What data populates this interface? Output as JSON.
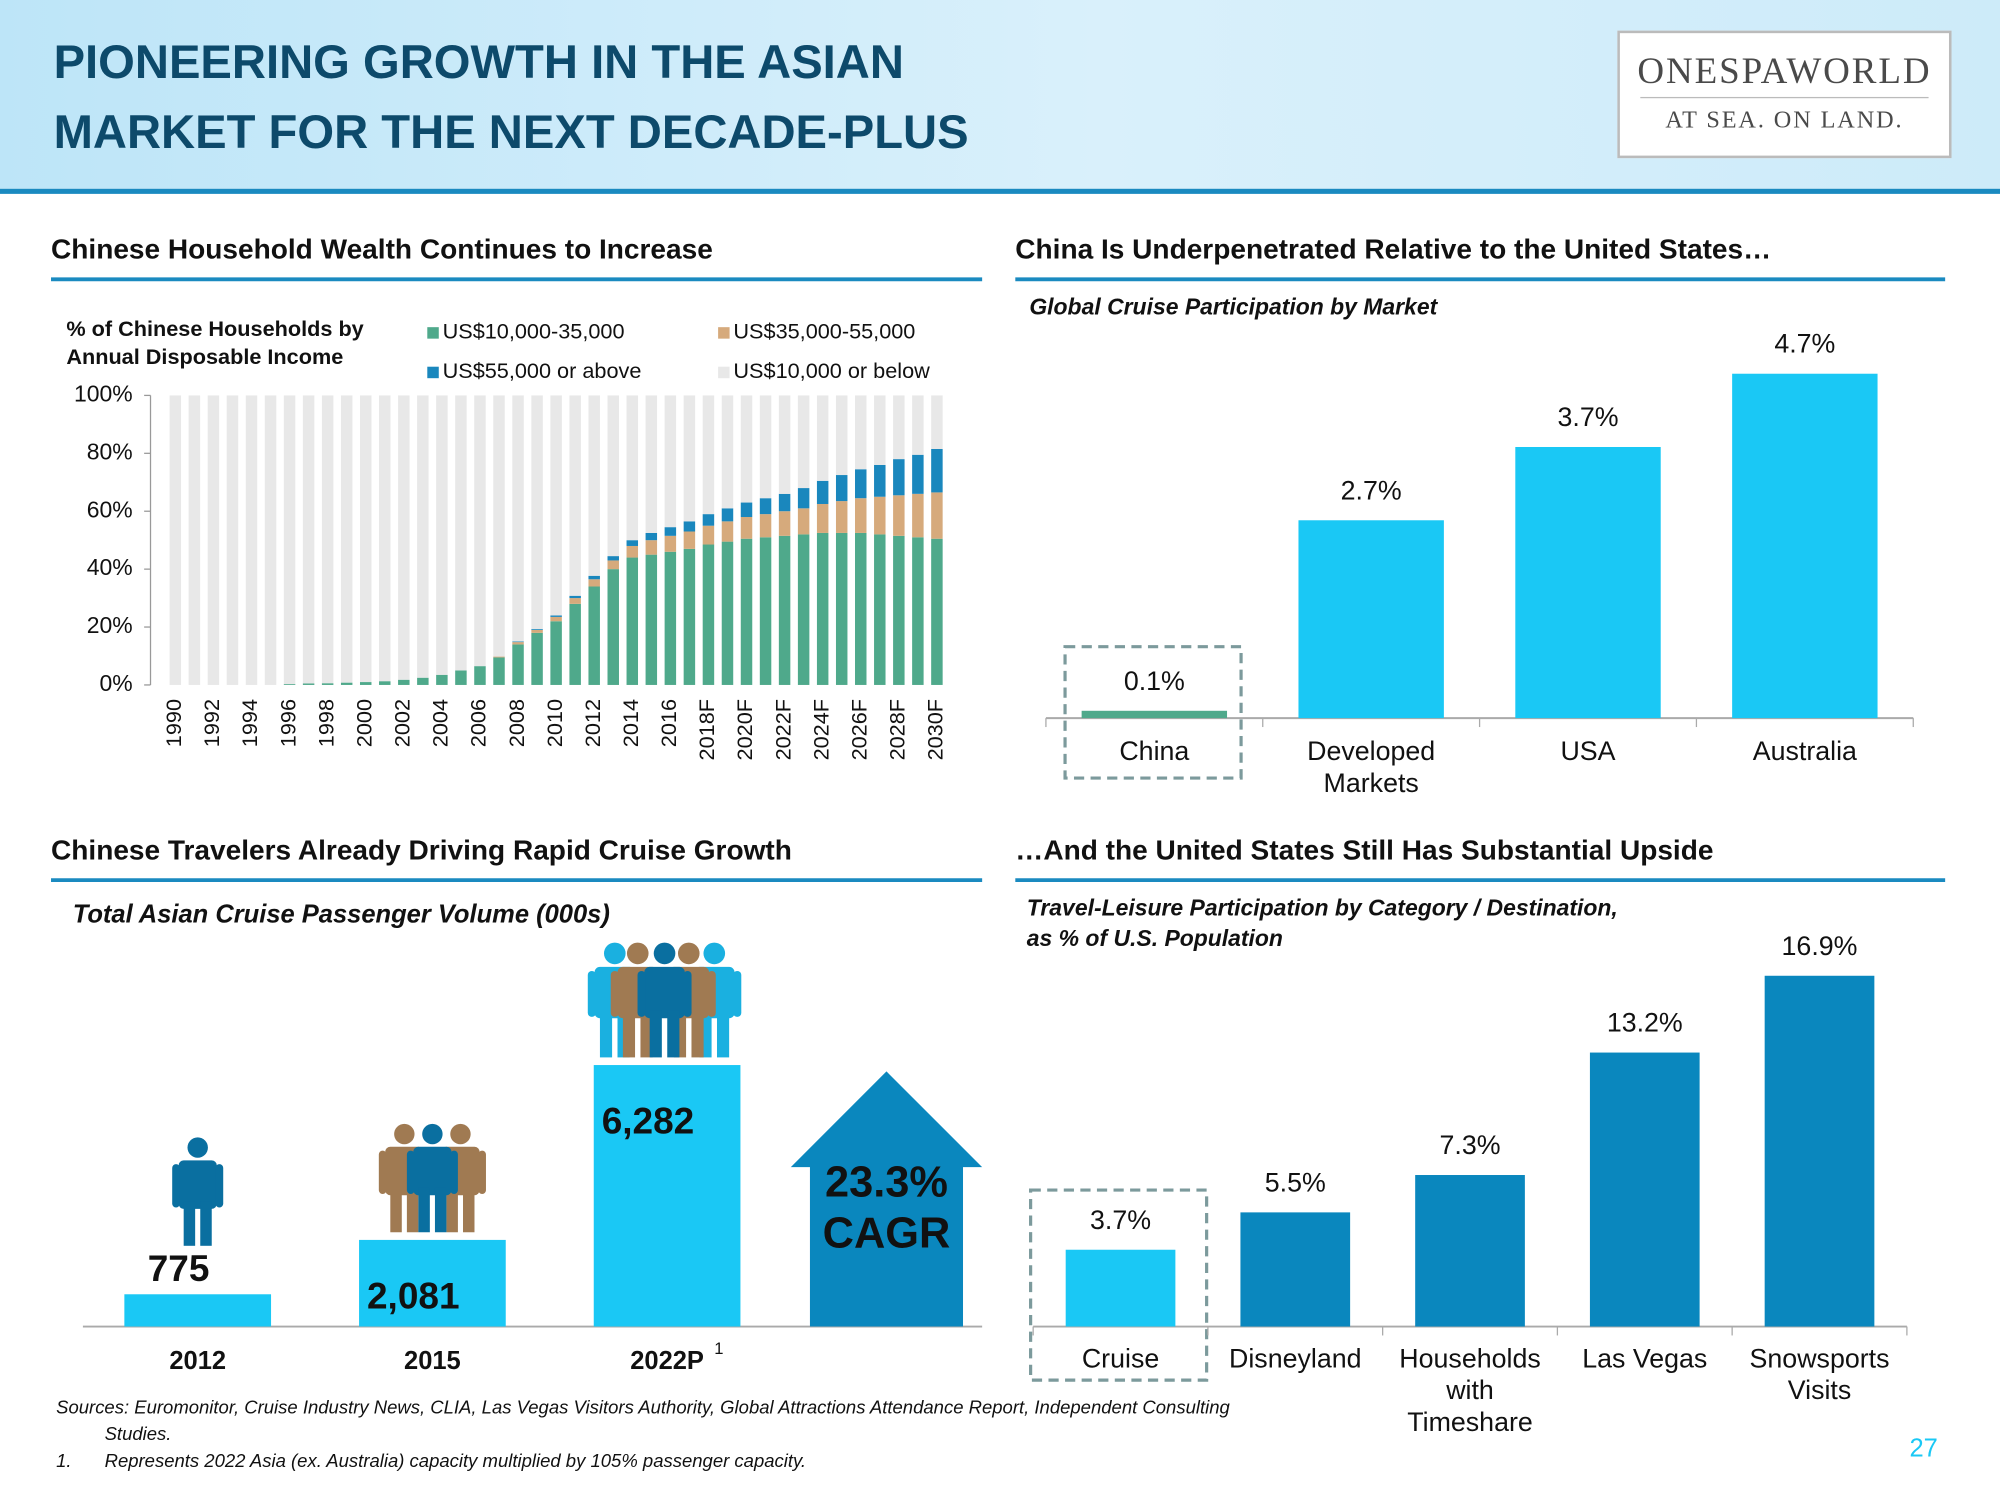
{
  "header": {
    "title": [
      "PIONEERING GROWTH IN THE ASIAN",
      "MARKET FOR THE NEXT DECADE-PLUS"
    ],
    "logo": {
      "name": "ONESPAWORLD",
      "tagline": "AT SEA. ON LAND."
    }
  },
  "chart_data": [
    {
      "type": "bar",
      "stacked": true,
      "heading": "Chinese Household Wealth Continues to Increase",
      "y_title": [
        "% of Chinese Households by",
        "Annual Disposable Income"
      ],
      "categories": [
        "1990",
        null,
        "1992",
        null,
        "1994",
        null,
        "1996",
        null,
        "1998",
        null,
        "2000",
        null,
        "2002",
        null,
        "2004",
        null,
        "2006",
        null,
        "2008",
        null,
        "2010",
        null,
        "2012",
        null,
        "2014",
        null,
        "2016",
        null,
        "2018F",
        null,
        "2020F",
        null,
        "2022F",
        null,
        "2024F",
        null,
        "2026F",
        null,
        "2028F",
        null,
        "2030F"
      ],
      "series": [
        {
          "name": "US$10,000-35,000",
          "color": "#4fa98b",
          "values": [
            0,
            0,
            0,
            0,
            0,
            0,
            0.3,
            0.5,
            0.6,
            0.8,
            1,
            1.3,
            1.8,
            2.5,
            3.5,
            5,
            6.5,
            9.5,
            14,
            18,
            22,
            28,
            34,
            40,
            44,
            45,
            46,
            47,
            48.5,
            49.5,
            50.5,
            51,
            51.5,
            52,
            52.5,
            52.5,
            52.5,
            52,
            51.5,
            51,
            50.5
          ]
        },
        {
          "name": "US$35,000-55,000",
          "color": "#d6aa7c",
          "values": [
            0,
            0,
            0,
            0,
            0,
            0,
            0,
            0,
            0,
            0,
            0,
            0,
            0,
            0,
            0,
            0,
            0,
            0.3,
            0.8,
            1,
            1.5,
            2,
            2.5,
            3,
            4,
            5,
            5.5,
            6,
            6.5,
            7,
            7.5,
            8,
            8.5,
            9,
            10,
            11,
            12,
            13,
            14,
            15,
            16
          ]
        },
        {
          "name": "US$55,000 or above",
          "color": "#1a87bd",
          "values": [
            0,
            0,
            0,
            0,
            0,
            0,
            0,
            0,
            0,
            0,
            0,
            0,
            0,
            0,
            0,
            0,
            0,
            0,
            0.2,
            0.3,
            0.5,
            0.8,
            1.2,
            1.5,
            2,
            2.5,
            3,
            3.5,
            4,
            4.5,
            5,
            5.5,
            6,
            7,
            8,
            9,
            10,
            11,
            12.5,
            13.5,
            15
          ]
        },
        {
          "name": "US$10,000 or below",
          "color": "#e8e8e8",
          "values": [
            100,
            100,
            100,
            100,
            100,
            100,
            99.7,
            99.5,
            99.4,
            99.2,
            99,
            98.7,
            98.2,
            97.5,
            96.5,
            95,
            93.5,
            90.2,
            85,
            80.7,
            76,
            69.2,
            62.3,
            55.5,
            50,
            47.5,
            45.5,
            43.5,
            41,
            39,
            37,
            35.5,
            34,
            32,
            29.5,
            27.5,
            25.5,
            24,
            22,
            20.5,
            18.5
          ]
        }
      ],
      "ylim": [
        0,
        100
      ],
      "yticks": [
        {
          "value": 0,
          "label": "0%"
        },
        {
          "value": 20,
          "label": "20%"
        },
        {
          "value": 40,
          "label": "40%"
        },
        {
          "value": 60,
          "label": "60%"
        },
        {
          "value": 80,
          "label": "80%"
        },
        {
          "value": 100,
          "label": "100%"
        }
      ]
    },
    {
      "type": "bar",
      "heading": "China Is Underpenetrated Relative to the United States…",
      "title": [
        "Global Cruise Participation by Market"
      ],
      "categories": [
        "China",
        "Developed Markets",
        "USA",
        "Australia"
      ],
      "values": [
        0.1,
        2.7,
        3.7,
        4.7
      ],
      "value_labels": [
        "0.1%",
        "2.7%",
        "3.7%",
        "4.7%"
      ],
      "colors": [
        "#4fa98b",
        "#1ac8f5",
        "#1ac8f5",
        "#1ac8f5"
      ]
    },
    {
      "type": "bar",
      "heading": "Chinese Travelers Already Driving Rapid Cruise Growth",
      "title": [
        "Total Asian Cruise Passenger Volume (000s)"
      ],
      "categories": [
        "2012",
        "2015",
        "2022P"
      ],
      "category_notes": [
        null,
        null,
        "1"
      ],
      "values": [
        775,
        2081,
        6282
      ],
      "value_labels": [
        "775",
        "2,081",
        "6,282"
      ],
      "color": "#1ac8f5",
      "annotation": [
        "23.3%",
        "CAGR"
      ]
    },
    {
      "type": "bar",
      "heading": "…And the United States Still Has Substantial Upside",
      "title": [
        "Travel-Leisure Participation by Category / Destination,",
        "as % of U.S. Population"
      ],
      "categories": [
        "Cruise",
        "Disneyland",
        "Households with Timeshare",
        "Las Vegas",
        "Snowsports Visits"
      ],
      "values": [
        3.7,
        5.5,
        7.3,
        13.2,
        16.9
      ],
      "value_labels": [
        "3.7%",
        "5.5%",
        "7.3%",
        "13.2%",
        "16.9%"
      ],
      "colors": [
        "#1ac8f5",
        "#0a87be",
        "#0a87be",
        "#0a87be",
        "#0a87be"
      ]
    }
  ],
  "footer": {
    "sources": "Sources: Euromonitor, Cruise Industry News, CLIA, Las Vegas Visitors Authority, Global Attractions Attendance Report, Independent Consulting Studies.",
    "note_mark": "1.",
    "note": "Represents 2022 Asia (ex. Australia) capacity multiplied by 105% passenger capacity.",
    "page": 27
  }
}
